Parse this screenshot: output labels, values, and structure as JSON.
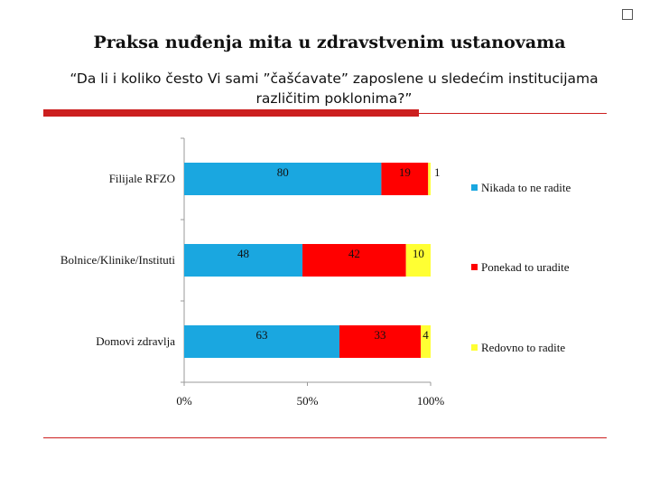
{
  "title": "Praksa nuđenja mita u zdravstvenim ustanovama",
  "subtitle_line1": "“Da li i koliko često Vi sami ”čašćavate” zaposlene u sledećim institucijama",
  "subtitle_line2": "različitim poklonima?”",
  "chart_data": {
    "type": "bar",
    "orientation": "horizontal",
    "stacked": "percent",
    "categories": [
      "Filijale RFZO",
      "Bolnice/Klinike/Instituti",
      "Domovi zdravlja"
    ],
    "series": [
      {
        "name": "Nikada to ne radite",
        "color": "#1aa7e0",
        "values": [
          80,
          48,
          63
        ]
      },
      {
        "name": "Ponekad to uradite",
        "color": "#ff0000",
        "values": [
          19,
          42,
          33
        ]
      },
      {
        "name": "Redovno to radite",
        "color": "#ffff33",
        "values": [
          1,
          10,
          4
        ]
      }
    ],
    "data_labels": [
      [
        "80",
        "19",
        "1"
      ],
      [
        "48",
        "42",
        "10"
      ],
      [
        "63",
        "33",
        "4"
      ]
    ],
    "x_ticks": [
      "0%",
      "50%",
      "100%"
    ],
    "xlim": [
      0,
      100
    ],
    "legend_position": "right",
    "grid": false
  }
}
